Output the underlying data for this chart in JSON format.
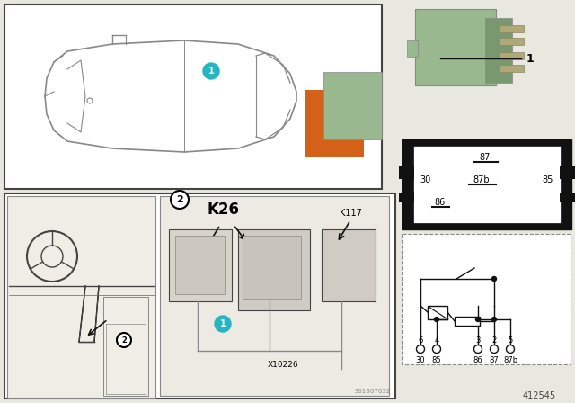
{
  "bg_color": "#e8e8e0",
  "white": "#ffffff",
  "black": "#111111",
  "gray_dark": "#444444",
  "gray_mid": "#888888",
  "gray_light": "#cccccc",
  "relay_green": "#9ab890",
  "orange": "#d4611a",
  "teal": "#26b5c0",
  "part_number": "412545",
  "stamp": "S01307032",
  "label_K26": "K26",
  "label_K117": "K117",
  "label_X10226": "X10226",
  "pin_top": [
    "6",
    "4",
    "",
    "3",
    "2",
    "5"
  ],
  "pin_bot": [
    "30",
    "85",
    "",
    "86",
    "87",
    "87b"
  ]
}
